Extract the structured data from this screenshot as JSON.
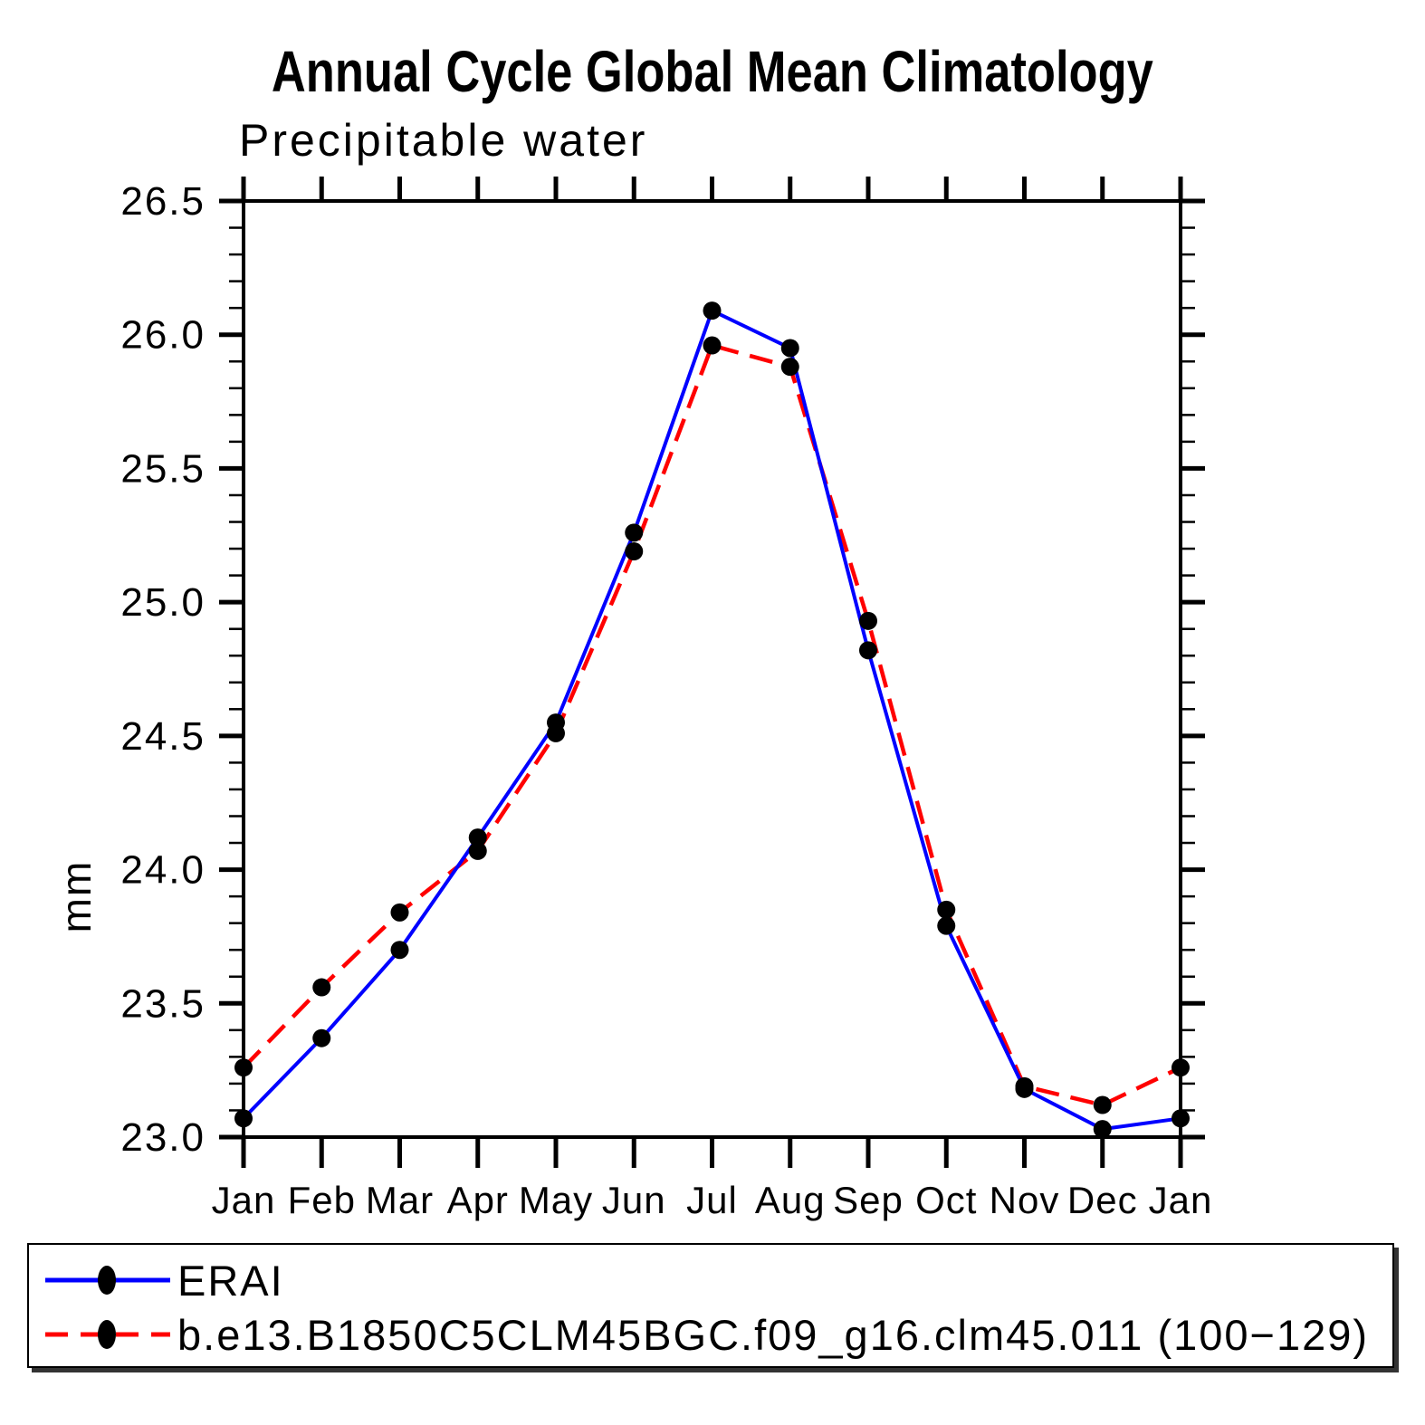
{
  "chart_data": {
    "type": "line",
    "title": "Annual Cycle Global Mean Climatology",
    "subtitle": "Precipitable water",
    "ylabel": "mm",
    "xlabel": "",
    "categories": [
      "Jan",
      "Feb",
      "Mar",
      "Apr",
      "May",
      "Jun",
      "Jul",
      "Aug",
      "Sep",
      "Oct",
      "Nov",
      "Dec",
      "Jan"
    ],
    "series": [
      {
        "name": "ERAI",
        "color": "#0000ff",
        "line_style": "solid",
        "marker": "filled-black-dot",
        "values": [
          23.07,
          23.37,
          23.7,
          24.12,
          24.55,
          25.26,
          26.09,
          25.95,
          24.82,
          23.79,
          23.18,
          23.03,
          23.07
        ]
      },
      {
        "name": "b.e13.B1850C5CLM45BGC.f09_g16.clm45.011 (100−129)",
        "color": "#ff0000",
        "line_style": "dashed",
        "marker": "filled-black-dot",
        "values": [
          23.26,
          23.56,
          23.84,
          24.07,
          24.51,
          25.19,
          25.96,
          25.88,
          24.93,
          23.85,
          23.19,
          23.12,
          23.26
        ]
      }
    ],
    "ylim": [
      23.0,
      26.5
    ],
    "ytick_major_step": 0.5,
    "ytick_minor_step": 0.1,
    "ytick_labels": [
      "23.0",
      "23.5",
      "24.0",
      "24.5",
      "25.0",
      "25.5",
      "26.0",
      "26.5"
    ],
    "grid": false,
    "legend_position": "bottom",
    "axis_color": "#000000",
    "marker_color": "#000000",
    "background_color": "#ffffff"
  }
}
